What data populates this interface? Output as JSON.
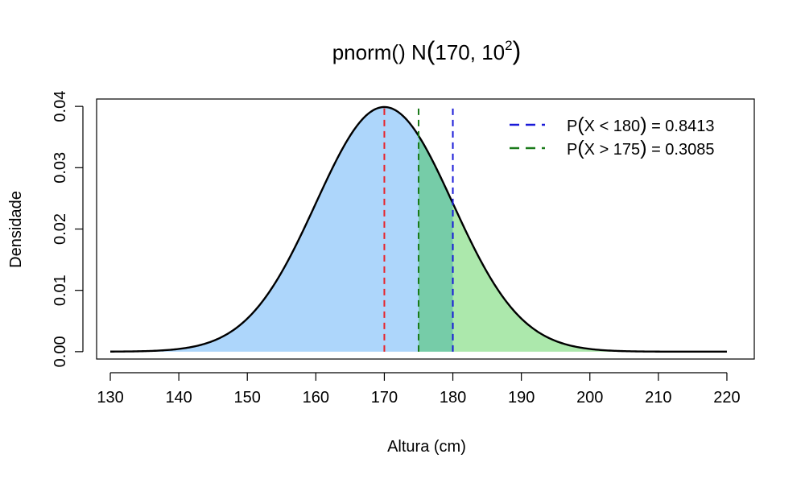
{
  "chart_data": {
    "type": "area",
    "title": {
      "main": "pnorm() N",
      "open_paren": "(",
      "params": "170, 10",
      "superscript": "2",
      "close_paren": ")"
    },
    "xlabel": "Altura (cm)",
    "ylabel": "Densidade",
    "distribution": {
      "name": "normal",
      "mean": 170,
      "sd": 10
    },
    "x_range": [
      130,
      220
    ],
    "xlim": [
      128,
      224
    ],
    "ylim": [
      -0.0012,
      0.0412
    ],
    "x_ticks": [
      130,
      140,
      150,
      160,
      170,
      180,
      190,
      200,
      210,
      220
    ],
    "x_tick_labels": [
      "130",
      "140",
      "150",
      "160",
      "170",
      "180",
      "190",
      "200",
      "210",
      "220"
    ],
    "y_ticks": [
      0,
      0.01,
      0.02,
      0.03,
      0.04
    ],
    "y_tick_labels": [
      "0.00",
      "0.01",
      "0.02",
      "0.03",
      "0.04"
    ],
    "regions": [
      {
        "from": 130,
        "to": 175,
        "color": "#add6fb"
      },
      {
        "from": 175,
        "to": 180,
        "color": "#76cca8"
      },
      {
        "from": 180,
        "to": 220,
        "color": "#ace8ac"
      }
    ],
    "curve_color": "#000000",
    "vlines": [
      {
        "x": 170,
        "color": "#e8232a"
      },
      {
        "x": 175,
        "color": "#1a7a1a"
      },
      {
        "x": 180,
        "color": "#1a1ad8"
      }
    ],
    "legend": {
      "position": "top-right",
      "entries": [
        {
          "prefix": "P",
          "open_paren": "(",
          "expr": "X < 180",
          "close_paren": ")",
          "value": " = 0.8413",
          "color": "#1a1ad8"
        },
        {
          "prefix": "P",
          "open_paren": "(",
          "expr": "X > 175",
          "close_paren": ")",
          "value": " = 0.3085",
          "color": "#1a7a1a"
        }
      ]
    },
    "grid": false
  }
}
